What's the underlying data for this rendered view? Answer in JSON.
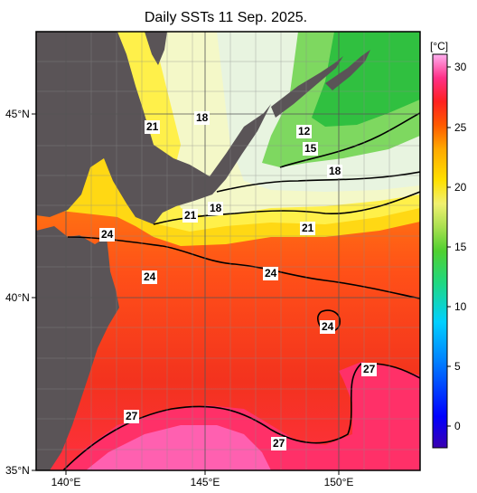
{
  "title": "Daily SSTs 11 Sep. 2025.",
  "latitude_labels": [
    "45°N",
    "40°N",
    "35°N"
  ],
  "longitude_labels": [
    "140°E",
    "145°E",
    "150°E"
  ],
  "colorbar": {
    "unit": "[°C]",
    "ticks": [
      "30",
      "25",
      "20",
      "15",
      "10",
      "5",
      "0"
    ],
    "colors": [
      "#3a00b0",
      "#0000ff",
      "#0080ff",
      "#00d0ff",
      "#00d890",
      "#50d030",
      "#a8e050",
      "#f0f070",
      "#ffe000",
      "#ffb000",
      "#ff6000",
      "#ff2000",
      "#ff2060",
      "#ff60b0",
      "#ffa8e8"
    ]
  },
  "contour_labels": [
    "21",
    "18",
    "12",
    "15",
    "18",
    "21",
    "18",
    "24",
    "21",
    "24",
    "24",
    "24",
    "27",
    "27",
    "27"
  ],
  "colors": {
    "land": "#5a5457",
    "warm": "#f3321e",
    "hot": "#ff4fa0",
    "mid": "#ff9414",
    "yellow": "#f6ea3a",
    "cool": "#f0f8d0",
    "green": "#3ac84a"
  }
}
